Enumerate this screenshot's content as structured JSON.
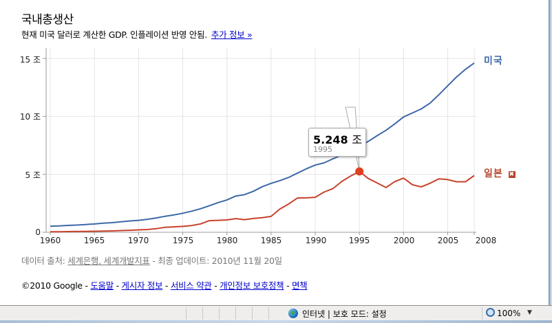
{
  "header": {
    "title": "국내총생산",
    "subtitle": "현재 미국 달러로 계산한 GDP. 인플레이션 반영 안됨.",
    "more_info_link": "추가 정보 »"
  },
  "chart": {
    "y_ticks": [
      "15 조",
      "10 조",
      "5 조",
      "0"
    ],
    "x_ticks": [
      "1960",
      "1965",
      "1970",
      "1975",
      "1980",
      "1985",
      "1990",
      "1995",
      "2000",
      "2005",
      "2008"
    ],
    "legend": {
      "us": "미국",
      "japan": "일본",
      "remove_icon": "✖"
    },
    "tooltip": {
      "value": "5.248",
      "unit": "조",
      "year": "1995"
    },
    "colors": {
      "us": "#3d67a8",
      "japan": "#c8412a",
      "marker": "#e0401f",
      "grid": "#e4e4e4",
      "axis": "#999999"
    }
  },
  "chart_data": {
    "type": "line",
    "title": "국내총생산",
    "subtitle": "현재 미국 달러로 계산한 GDP. 인플레이션 반영 안됨.",
    "xlabel": "",
    "ylabel": "",
    "ylim": [
      0,
      15
    ],
    "y_ticks": [
      0,
      5,
      10,
      15
    ],
    "y_tick_labels": [
      "0",
      "5 조",
      "10 조",
      "15 조"
    ],
    "x_ticks": [
      1960,
      1965,
      1970,
      1975,
      1980,
      1985,
      1990,
      1995,
      2000,
      2005,
      2008
    ],
    "grid": true,
    "legend_position": "right, at line ends",
    "x": [
      1960,
      1961,
      1962,
      1963,
      1964,
      1965,
      1966,
      1967,
      1968,
      1969,
      1970,
      1971,
      1972,
      1973,
      1974,
      1975,
      1976,
      1977,
      1978,
      1979,
      1980,
      1981,
      1982,
      1983,
      1984,
      1985,
      1986,
      1987,
      1988,
      1989,
      1990,
      1991,
      1992,
      1993,
      1994,
      1995,
      1996,
      1997,
      1998,
      1999,
      2000,
      2001,
      2002,
      2003,
      2004,
      2005,
      2006,
      2007,
      2008
    ],
    "series": [
      {
        "name": "미국",
        "values": [
          0.53,
          0.55,
          0.59,
          0.62,
          0.67,
          0.72,
          0.79,
          0.83,
          0.91,
          0.98,
          1.03,
          1.12,
          1.24,
          1.38,
          1.5,
          1.64,
          1.82,
          2.03,
          2.29,
          2.56,
          2.79,
          3.13,
          3.25,
          3.54,
          3.93,
          4.22,
          4.46,
          4.74,
          5.11,
          5.48,
          5.8,
          5.99,
          6.34,
          6.67,
          7.09,
          7.41,
          7.84,
          8.33,
          8.79,
          9.35,
          9.95,
          10.29,
          10.64,
          11.14,
          11.87,
          12.64,
          13.4,
          14.06,
          14.6
        ]
      },
      {
        "name": "일본",
        "values": [
          0.04,
          0.05,
          0.06,
          0.07,
          0.08,
          0.09,
          0.1,
          0.12,
          0.15,
          0.17,
          0.21,
          0.24,
          0.31,
          0.43,
          0.47,
          0.51,
          0.58,
          0.72,
          1.0,
          1.03,
          1.07,
          1.18,
          1.09,
          1.19,
          1.26,
          1.37,
          2.01,
          2.45,
          2.96,
          2.97,
          3.02,
          3.47,
          3.77,
          4.38,
          4.85,
          5.248,
          4.64,
          4.26,
          3.86,
          4.37,
          4.67,
          4.1,
          3.92,
          4.23,
          4.61,
          4.55,
          4.36,
          4.36,
          4.89
        ]
      }
    ],
    "highlight": {
      "series": "일본",
      "x": 1995,
      "value": 5.248,
      "label": "5.248 조",
      "sublabel": "1995"
    }
  },
  "source": {
    "prefix": "데이터 출처:",
    "link": "세계은행, 세계개발지표",
    "suffix": "- 최종 업데이트: 2010년 11월 20일"
  },
  "footer": {
    "copyright": "©2010 Google -",
    "links": [
      "도움말",
      "게시자 정보",
      "서비스 약관",
      "개인정보 보호정책",
      "면책"
    ],
    "separator": "-"
  },
  "statusbar": {
    "zone": "인터넷 | 보호 모드: 설정",
    "zoom": "100%",
    "dropdown": "▼"
  }
}
